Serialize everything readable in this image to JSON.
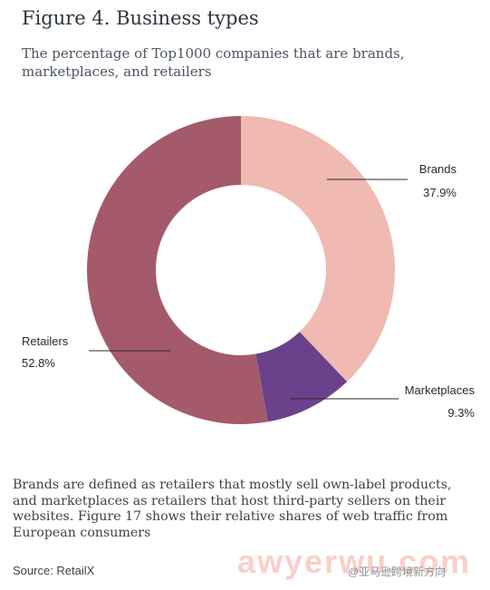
{
  "figure": {
    "title": "Figure 4. Business types",
    "subtitle": "The percentage of Top1000 companies that are brands, marketplaces, and retailers"
  },
  "chart_data": {
    "type": "pie",
    "variant": "donut",
    "title": "Figure 4. Business types",
    "subtitle": "The percentage of Top1000 companies that are brands, marketplaces, and retailers",
    "unit": "%",
    "categories": [
      "Brands",
      "Marketplaces",
      "Retailers"
    ],
    "values": [
      37.9,
      9.3,
      52.8
    ],
    "value_labels": [
      "37.9%",
      "9.3%",
      "52.8%"
    ],
    "colors": [
      "#f0b9b1",
      "#6a428c",
      "#a55a6c"
    ],
    "legend": "none"
  },
  "caption": "Brands are defined as retailers that mostly sell own-label products, and marketplaces as retailers that host third-party sellers on their websites. Figure 17 shows their relative shares of web traffic from European consumers",
  "source": "Source: RetailX",
  "watermark": {
    "text": "awyerwu.com",
    "tag": "@亚马逊跨境新方向"
  }
}
